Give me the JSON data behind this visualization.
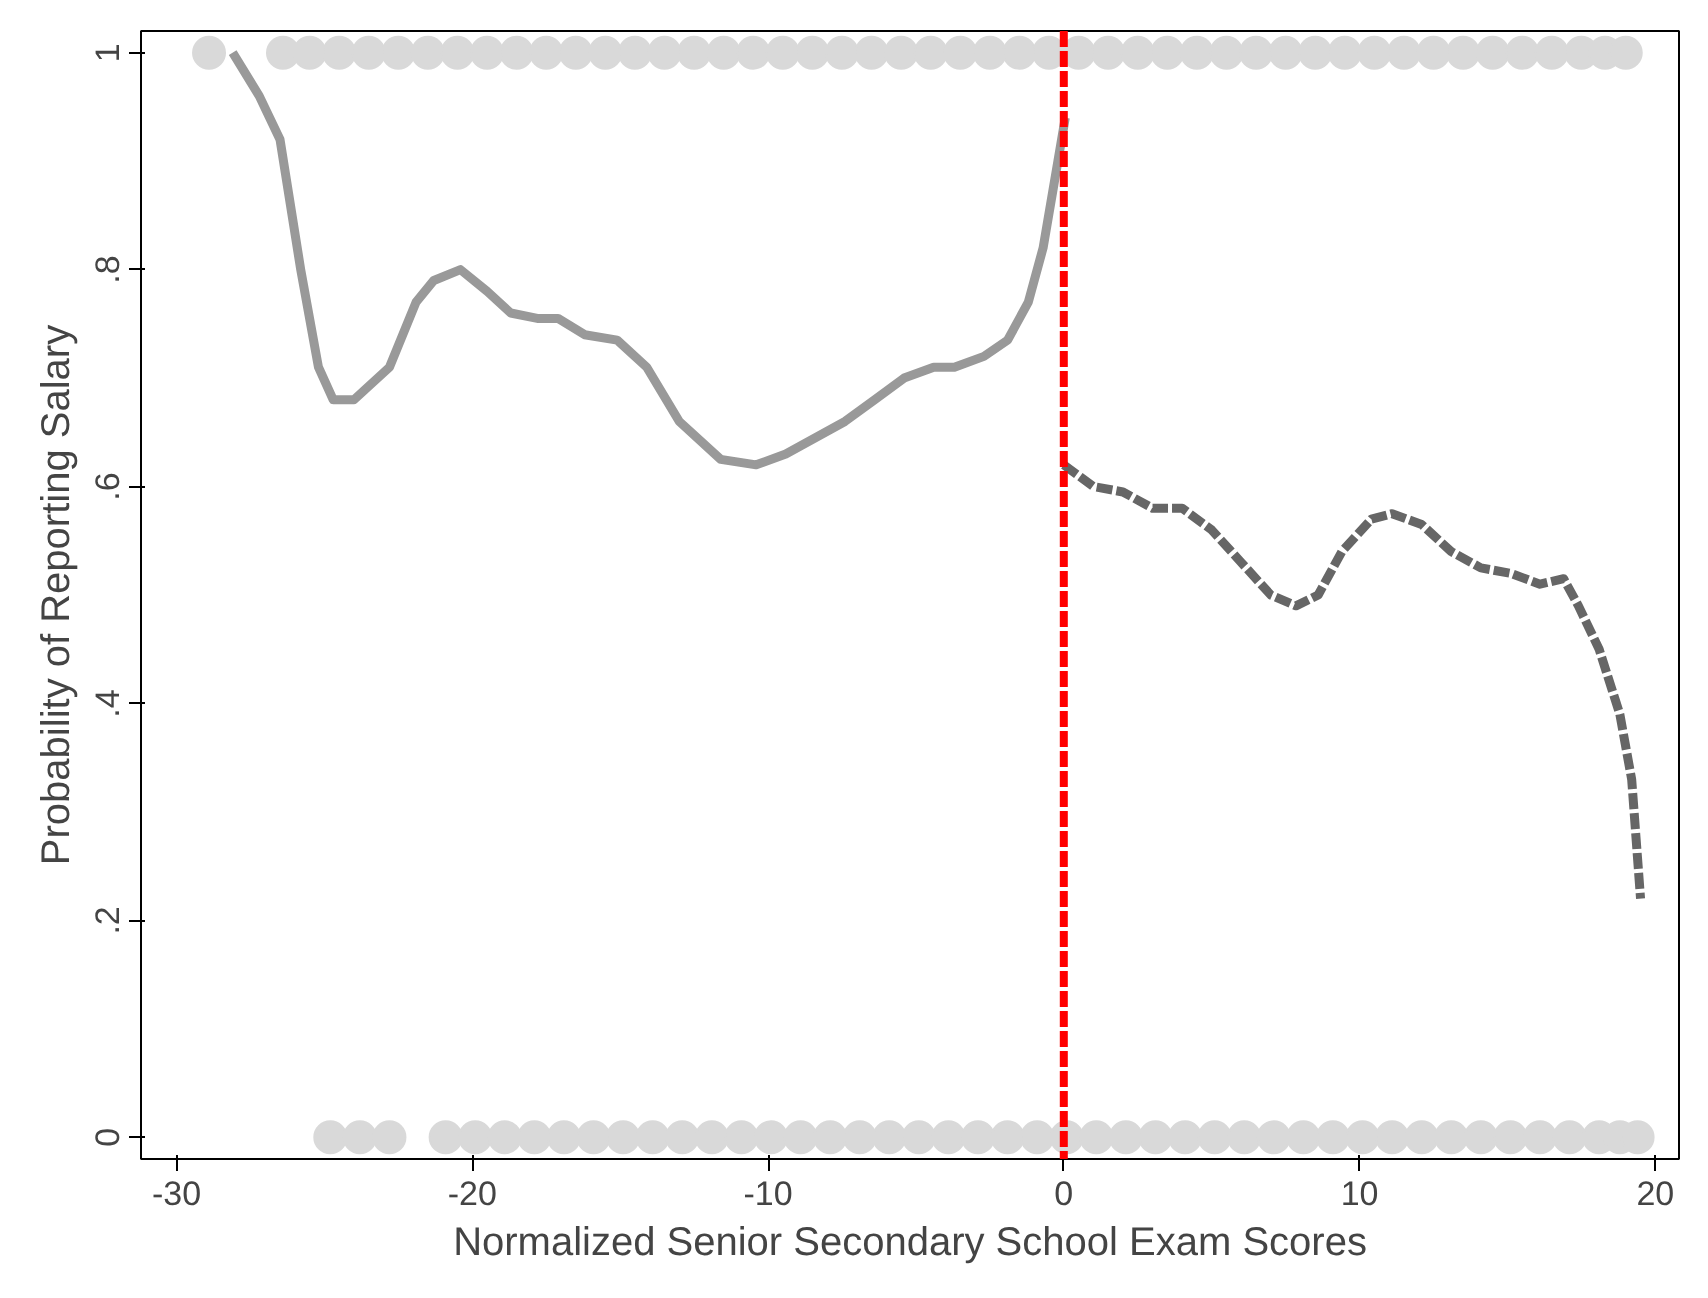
{
  "chart_data": {
    "type": "line",
    "xlabel": "Normalized Senior Secondary School Exam Scores",
    "ylabel": "Probability of Reporting Salary",
    "xlim": [
      -31.2,
      20.8
    ],
    "ylim": [
      -0.02,
      1.02
    ],
    "xticks": [
      -30,
      -20,
      -10,
      0,
      10,
      20
    ],
    "yticks": [
      0,
      {
        "value": 0.2,
        "label": ".2"
      },
      {
        "value": 0.4,
        "label": ".4"
      },
      {
        "value": 0.6,
        "label": ".6"
      },
      {
        "value": 0.8,
        "label": ".8"
      },
      1
    ],
    "grid": false,
    "series": [
      {
        "type": "scatter",
        "marker": "circle",
        "color": "#d9d9d9",
        "x": [
          -28.9,
          -26.4,
          -25.5,
          -24.5,
          -23.5,
          -22.5,
          -21.5,
          -20.5,
          -19.5,
          -18.5,
          -17.5,
          -16.5,
          -15.5,
          -14.5,
          -13.5,
          -12.5,
          -11.5,
          -10.5,
          -9.5,
          -8.5,
          -7.5,
          -6.5,
          -5.5,
          -4.5,
          -3.5,
          -2.5,
          -1.5,
          -0.5,
          0.5,
          1.5,
          2.5,
          3.5,
          4.5,
          5.5,
          6.5,
          7.5,
          8.5,
          9.5,
          10.5,
          11.5,
          12.5,
          13.5,
          14.5,
          15.5,
          16.5,
          17.5,
          18.3,
          19.0
        ],
        "values": [
          1,
          1,
          1,
          1,
          1,
          1,
          1,
          1,
          1,
          1,
          1,
          1,
          1,
          1,
          1,
          1,
          1,
          1,
          1,
          1,
          1,
          1,
          1,
          1,
          1,
          1,
          1,
          1,
          1,
          1,
          1,
          1,
          1,
          1,
          1,
          1,
          1,
          1,
          1,
          1,
          1,
          1,
          1,
          1,
          1,
          1,
          1,
          1
        ]
      },
      {
        "type": "scatter",
        "marker": "circle",
        "color": "#d9d9d9",
        "x": [
          -24.8,
          -23.8,
          -22.8,
          -20.9,
          -19.9,
          -18.9,
          -17.9,
          -16.9,
          -15.9,
          -14.9,
          -13.9,
          -12.9,
          -11.9,
          -10.9,
          -9.9,
          -8.9,
          -7.9,
          -6.9,
          -5.9,
          -4.9,
          -3.9,
          -2.9,
          -1.9,
          -0.9,
          0.1,
          1.1,
          2.1,
          3.1,
          4.1,
          5.1,
          6.1,
          7.1,
          8.1,
          9.1,
          10.1,
          11.1,
          12.1,
          13.1,
          14.1,
          15.1,
          16.1,
          17.1,
          18.1,
          18.8,
          19.4
        ],
        "values": [
          0,
          0,
          0,
          0,
          0,
          0,
          0,
          0,
          0,
          0,
          0,
          0,
          0,
          0,
          0,
          0,
          0,
          0,
          0,
          0,
          0,
          0,
          0,
          0,
          0,
          0,
          0,
          0,
          0,
          0,
          0,
          0,
          0,
          0,
          0,
          0,
          0,
          0,
          0,
          0,
          0,
          0,
          0,
          0,
          0
        ]
      },
      {
        "line_style": "solid",
        "color": "#999999",
        "x": [
          -28.1,
          -27.2,
          -26.5,
          -25.8,
          -25.2,
          -24.7,
          -24.0,
          -22.8,
          -21.9,
          -21.3,
          -20.4,
          -19.5,
          -18.7,
          -17.8,
          -17.1,
          -16.2,
          -15.1,
          -14.1,
          -13.0,
          -11.6,
          -10.4,
          -9.4,
          -8.4,
          -7.4,
          -6.4,
          -5.4,
          -4.4,
          -3.7,
          -2.7,
          -1.9,
          -1.2,
          -0.7,
          -0.2,
          0.05
        ],
        "values": [
          1.0,
          0.96,
          0.92,
          0.8,
          0.71,
          0.68,
          0.68,
          0.71,
          0.77,
          0.79,
          0.8,
          0.78,
          0.76,
          0.755,
          0.755,
          0.74,
          0.735,
          0.71,
          0.66,
          0.625,
          0.62,
          0.63,
          0.645,
          0.66,
          0.68,
          0.7,
          0.71,
          0.71,
          0.72,
          0.735,
          0.77,
          0.82,
          0.9,
          0.94
        ]
      },
      {
        "line_style": "dashed",
        "color": "#666666",
        "x": [
          0.0,
          1.0,
          2.0,
          3.0,
          4.0,
          5.0,
          6.0,
          7.0,
          7.85,
          8.6,
          9.4,
          10.4,
          11.1,
          12.1,
          13.1,
          14.1,
          15.1,
          16.1,
          16.9,
          17.4,
          18.1,
          18.8,
          19.2,
          19.5
        ],
        "values": [
          0.62,
          0.6,
          0.595,
          0.58,
          0.58,
          0.56,
          0.53,
          0.5,
          0.49,
          0.5,
          0.54,
          0.57,
          0.575,
          0.565,
          0.54,
          0.525,
          0.52,
          0.51,
          0.515,
          0.49,
          0.45,
          0.39,
          0.33,
          0.22
        ]
      }
    ],
    "ref_lines": [
      {
        "axis": "x",
        "value": 0,
        "color": "#ff0000",
        "line_style": "dashed"
      }
    ]
  }
}
